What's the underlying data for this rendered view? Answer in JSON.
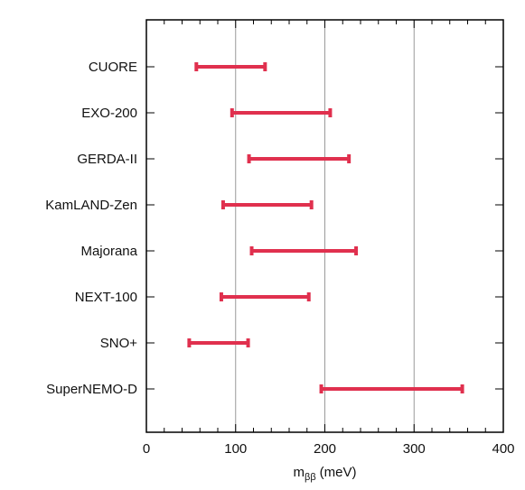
{
  "chart_data": {
    "type": "interval",
    "title": "",
    "xlabel": "m",
    "xlabel_subscript": "ββ",
    "xlabel_unit": "(meV)",
    "ylabel": "",
    "xlim": [
      0,
      400
    ],
    "xticks": [
      0,
      100,
      200,
      300,
      400
    ],
    "grid": "vertical",
    "bar_color": "#e0304e",
    "categories": [
      "CUORE",
      "EXO-200",
      "GERDA-II",
      "KamLAND-Zen",
      "Majorana",
      "NEXT-100",
      "SNO+",
      "SuperNEMO-D"
    ],
    "intervals": [
      [
        56,
        133
      ],
      [
        96,
        206
      ],
      [
        115,
        227
      ],
      [
        86,
        185
      ],
      [
        118,
        235
      ],
      [
        84,
        182
      ],
      [
        48,
        114
      ],
      [
        196,
        354
      ]
    ]
  }
}
